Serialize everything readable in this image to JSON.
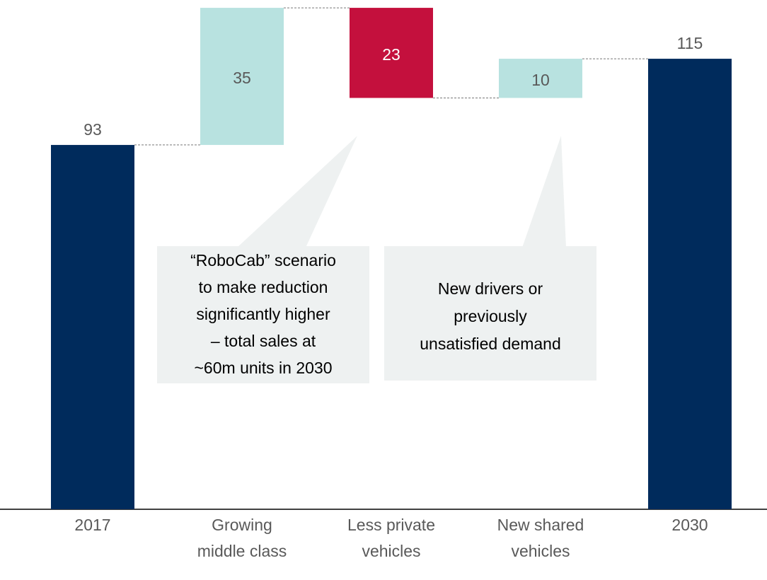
{
  "chart_data": {
    "type": "waterfall",
    "categories": [
      [
        "2017"
      ],
      [
        "Growing",
        "middle class"
      ],
      [
        "Less private",
        "vehicles"
      ],
      [
        "New shared",
        "vehicles"
      ],
      [
        "2030"
      ]
    ],
    "values": [
      93,
      35,
      -23,
      10,
      115
    ],
    "value_labels": [
      "93",
      "35",
      "23",
      "10",
      "115"
    ],
    "colors": [
      "#002b5c",
      "#b8e2e0",
      "#c4103d",
      "#b8e2e0",
      "#002b5c"
    ],
    "ylim": [
      0,
      130
    ],
    "annotations": [
      {
        "lines": [
          "“RoboCab” scenario",
          "to make reduction",
          "significantly higher",
          "– total sales at",
          "~60m units in 2030"
        ]
      },
      {
        "lines": [
          "New drivers or",
          "previously",
          "unsatisfied demand"
        ]
      }
    ]
  }
}
